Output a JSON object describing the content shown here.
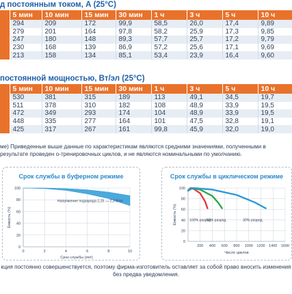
{
  "table1": {
    "title": "д постоянным током, А (25°C)",
    "headers": [
      "",
      "5 мин",
      "10 мин",
      "15 мин",
      "30 мин",
      "1 ч",
      "3 ч",
      "5 ч",
      "10 ч"
    ],
    "rows": [
      [
        "",
        "294",
        "209",
        "172",
        "99,9",
        "58,5",
        "26,0",
        "17,4",
        "9,89"
      ],
      [
        "",
        "279",
        "201",
        "164",
        "97,8",
        "58,2",
        "25,9",
        "17,3",
        "9,85"
      ],
      [
        "",
        "247",
        "180",
        "148",
        "89,3",
        "57,7",
        "25,7",
        "17,2",
        "9,79"
      ],
      [
        "",
        "230",
        "168",
        "139",
        "86,9",
        "57,2",
        "25,6",
        "17,1",
        "9,69"
      ],
      [
        "",
        "213",
        "158",
        "134",
        "85,1",
        "53,4",
        "23,9",
        "16,4",
        "9,60"
      ]
    ]
  },
  "table2": {
    "title": "постоянной мощностью, Вт/эл (25°C)",
    "headers": [
      "",
      "5 мин",
      "10 мин",
      "15 мин",
      "30 мин",
      "1 ч",
      "3 ч",
      "5 ч",
      "10 ч"
    ],
    "rows": [
      [
        "",
        "530",
        "381",
        "315",
        "189",
        "113",
        "49,1",
        "34,5",
        "19,7"
      ],
      [
        "",
        "511",
        "378",
        "310",
        "182",
        "108",
        "48,9",
        "33,9",
        "19,5"
      ],
      [
        "",
        "472",
        "349",
        "293",
        "174",
        "104",
        "48,9",
        "33,9",
        "19,5"
      ],
      [
        "",
        "448",
        "335",
        "277",
        "164",
        "101",
        "47,5",
        "32,8",
        "19,1"
      ],
      [
        "",
        "425",
        "317",
        "267",
        "161",
        "99,8",
        "45,9",
        "32,0",
        "19,0"
      ]
    ]
  },
  "note": "ме) Приведенные выше данные по характеристикам являются средними значениями, полученными в результате проведен о-тренировочных циклов, и не являются номинальными по умолчанию.",
  "chart_data": [
    {
      "type": "line",
      "title": "Срок службы в буферном режиме",
      "xlabel": "Срок службы (лет)",
      "ylabel": "Емкость (%)",
      "xlim": [
        0,
        10
      ],
      "ylim": [
        0,
        100
      ],
      "xticks": [
        "0",
        "2",
        "4",
        "6",
        "8",
        "10"
      ],
      "yticks": [
        "0",
        "20",
        "40",
        "60",
        "80",
        "100"
      ],
      "annotation": "Напряжение подзаряда 2,25 — 2,3 В/эл",
      "series": [
        {
          "upper": [
            [
              0,
              100
            ],
            [
              2,
              100
            ],
            [
              4,
              99
            ],
            [
              6,
              97
            ],
            [
              8,
              93
            ],
            [
              10,
              87
            ]
          ],
          "lower": [
            [
              0,
              100
            ],
            [
              2,
              99
            ],
            [
              4,
              96
            ],
            [
              6,
              90
            ],
            [
              8,
              82
            ],
            [
              10,
              70
            ]
          ]
        }
      ]
    },
    {
      "type": "line",
      "title": "Срок службы в циклическом режиме",
      "xlabel": "Число циклов",
      "ylabel": "Емкость (%)",
      "xlim": [
        0,
        1600
      ],
      "ylim": [
        0,
        100
      ],
      "xticks": [
        "200",
        "400",
        "600",
        "800",
        "1000",
        "1200",
        "1400",
        "1600"
      ],
      "yticks": [
        "0",
        "20",
        "40",
        "60",
        "80",
        "100"
      ],
      "series": [
        {
          "name": "100% разряд",
          "color": "#e23a3a",
          "values": [
            [
              0,
              95
            ],
            [
              40,
              100
            ],
            [
              100,
              98
            ],
            [
              200,
              90
            ],
            [
              280,
              75
            ],
            [
              320,
              62
            ]
          ]
        },
        {
          "name": "50% разряд",
          "color": "#2ea84a",
          "values": [
            [
              0,
              95
            ],
            [
              60,
              100
            ],
            [
              200,
              97
            ],
            [
              400,
              85
            ],
            [
              500,
              72
            ],
            [
              560,
              62
            ]
          ]
        },
        {
          "name": "30% разряд",
          "color": "#2b9ad6",
          "values": [
            [
              0,
              95
            ],
            [
              80,
              100
            ],
            [
              400,
              97
            ],
            [
              800,
              87
            ],
            [
              1100,
              73
            ],
            [
              1280,
              62
            ]
          ]
        }
      ]
    }
  ],
  "footer": "кция постоянно совершенствуется, поэтому фирма-изготовитель оставляет за собой право вносить изменения без предва уведомления."
}
